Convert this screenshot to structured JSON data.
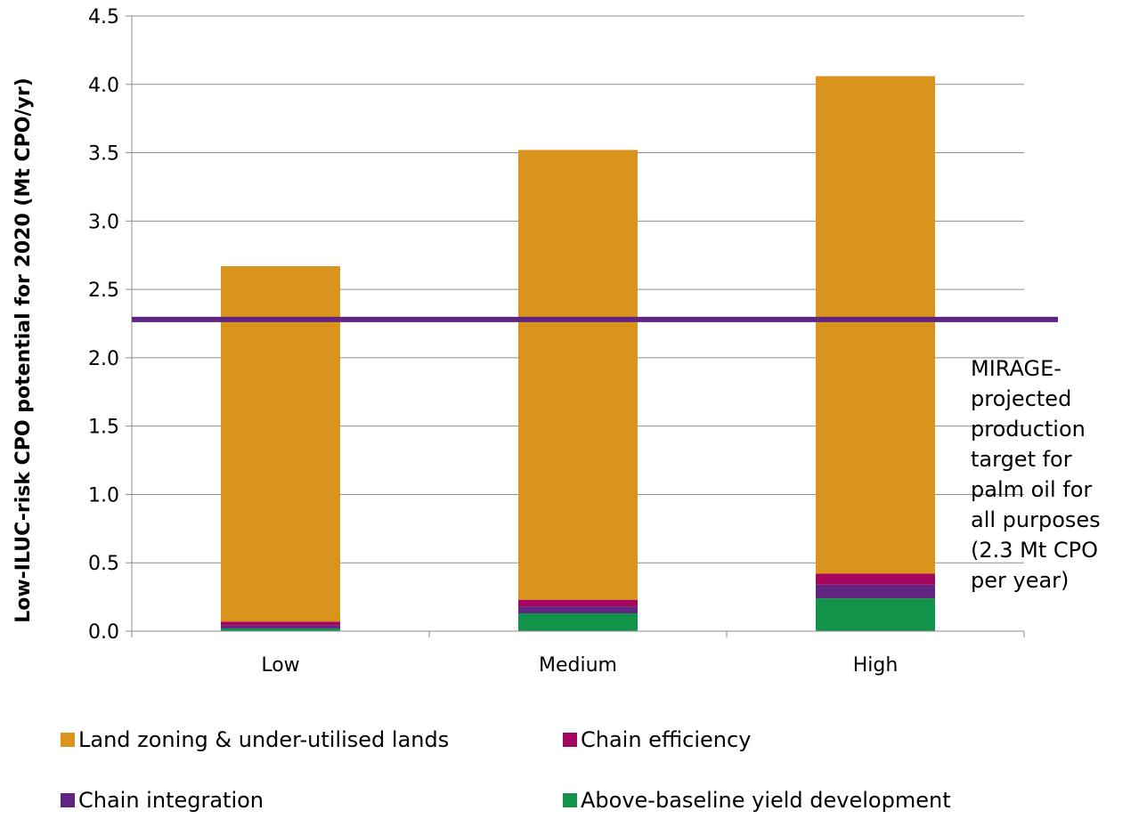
{
  "chart_data": {
    "type": "bar",
    "stacked": true,
    "categories": [
      "Low",
      "Medium",
      "High"
    ],
    "series": [
      {
        "name": "Above-baseline yield development",
        "color": "#12934A",
        "values": [
          0.02,
          0.13,
          0.24
        ]
      },
      {
        "name": "Chain integration",
        "color": "#5F2580",
        "values": [
          0.02,
          0.05,
          0.1
        ]
      },
      {
        "name": "Chain efficiency",
        "color": "#A3055F",
        "values": [
          0.03,
          0.05,
          0.08
        ]
      },
      {
        "name": "Land zoning & under-utilised lands",
        "color": "#DA931D",
        "values": [
          2.6,
          3.29,
          3.64
        ]
      }
    ],
    "ylabel": "Low-ILUC-risk CPO potential for 2020 (Mt CPO/yr)",
    "ylim": [
      0,
      4.5
    ],
    "yticks": [
      "0.0",
      "0.5",
      "1.0",
      "1.5",
      "2.0",
      "2.5",
      "3.0",
      "3.5",
      "4.0",
      "4.5"
    ],
    "grid": true,
    "reference_line": {
      "value": 2.28,
      "color": "#5F2580"
    },
    "annotation_lines": [
      "MIRAGE-",
      "projected",
      "production",
      "target for",
      "palm oil for",
      "all purposes",
      "(2.3 Mt CPO",
      "per year)"
    ],
    "legend_position": "bottom",
    "legend_order": [
      "Land zoning & under-utilised lands",
      "Chain efficiency",
      "Chain integration",
      "Above-baseline yield development"
    ]
  }
}
